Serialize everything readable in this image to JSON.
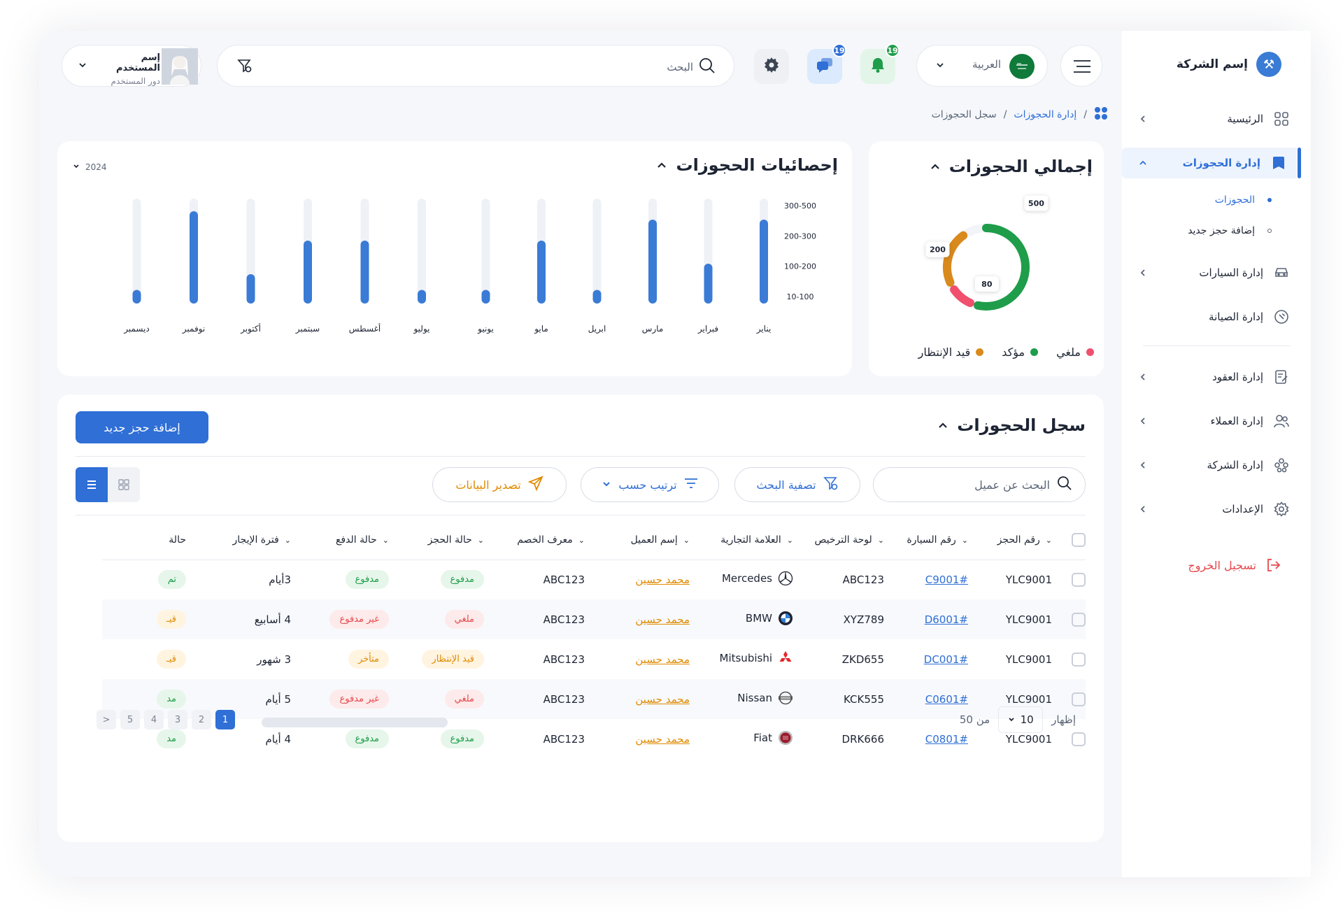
{
  "sidebar": {
    "company_name": "إسم الشركة",
    "items": [
      {
        "label": "الرئيسية"
      },
      {
        "label": "إدارة الحجوزات"
      },
      {
        "label": "إدارة السيارات"
      },
      {
        "label": "إدارة الصيانة"
      },
      {
        "label": "إدارة العقود"
      },
      {
        "label": "إدارة العملاء"
      },
      {
        "label": "إدارة الشركة"
      },
      {
        "label": "الإعدادات"
      }
    ],
    "sub_items": [
      {
        "label": "الحجوزات"
      },
      {
        "label": "إضافة حجز جديد"
      }
    ],
    "logout": "تسجيل الخروج"
  },
  "header": {
    "language": "العربية",
    "notifications_count": "19",
    "messages_count": "19",
    "search_placeholder": "البحث",
    "user_name": "إسم المستخدم",
    "user_role": "دور المستخدم"
  },
  "breadcrumb": {
    "parent": "إدارة الحجوزات",
    "separator": "/",
    "current": "سجل الحجوزات"
  },
  "summary": {
    "title": "إجمالي الحجوزات",
    "legend": [
      {
        "label": "ملغي",
        "color": "#f0506e"
      },
      {
        "label": "مؤكد",
        "color": "#1f9d4a"
      },
      {
        "label": "قيد الإنتظار",
        "color": "#d98a1c"
      }
    ]
  },
  "stats": {
    "title": "إحصائيات الحجوزات",
    "year": "2024"
  },
  "chart_data": [
    {
      "type": "pie",
      "categories": [
        "مؤكد",
        "قيد الإنتظار",
        "ملغي"
      ],
      "values": [
        500,
        200,
        80
      ],
      "data_labels": [
        "500",
        "200",
        "80"
      ],
      "colors": [
        "#1f9d4a",
        "#d98a1c",
        "#f0506e"
      ]
    },
    {
      "type": "bar",
      "categories": [
        "يناير",
        "فبراير",
        "مارس",
        "ابريل",
        "مايو",
        "يونيو",
        "يوليو",
        "أغسطس",
        "سبتمبر",
        "أكتوبر",
        "نوفمبر",
        "ديسمبر"
      ],
      "values": [
        400,
        190,
        400,
        65,
        300,
        65,
        65,
        300,
        300,
        140,
        440,
        65
      ],
      "ylim": [
        0,
        500
      ],
      "ytick_labels": [
        "10-100",
        "100-200",
        "200-300",
        "300-500"
      ],
      "color": "#3a7bd5"
    }
  ],
  "register": {
    "title": "سجل الحجوزات",
    "add_button": "إضافة حجز جديد",
    "search_placeholder": "البحث عن عميل",
    "filter_button": "تصفية البحث",
    "sort_button": "ترتيب حسب",
    "export_button": "تصدير البيانات",
    "columns": [
      "رقم الحجز",
      "رقم السيارة",
      "لوحة الترخيص",
      "العلامة التجارية",
      "إسم العميل",
      "معرف الخصم",
      "حالة الحجز",
      "حالة الدفع",
      "فترة الإيجار",
      "حالة"
    ],
    "rows": [
      {
        "id": "YLC9001",
        "car": "#C9001",
        "plate": "ABC123",
        "brand": "Mercedes",
        "client": "محمد حسين",
        "discount": "ABC123",
        "booking": "مدفوع",
        "booking_type": "paid",
        "payment": "مدفوع",
        "payment_type": "paid",
        "period": "3أيام",
        "status": "تم"
      },
      {
        "id": "YLC9001",
        "car": "#D6001",
        "plate": "XYZ789",
        "brand": "BMW",
        "client": "محمد حسين",
        "discount": "ABC123",
        "booking": "ملغي",
        "booking_type": "unpaid",
        "payment": "غير مدفوع",
        "payment_type": "unpaid",
        "period": "4 أسابيع",
        "status": "قيـ"
      },
      {
        "id": "YLC9001",
        "car": "#DC001",
        "plate": "ZKD655",
        "brand": "Mitsubishi",
        "client": "محمد حسين",
        "discount": "ABC123",
        "booking": "قيد الإنتظار",
        "booking_type": "wait",
        "payment": "متأخر",
        "payment_type": "wait",
        "period": "3 شهور",
        "status": "قيـ"
      },
      {
        "id": "YLC9001",
        "car": "#C0601",
        "plate": "KCK555",
        "brand": "Nissan",
        "client": "محمد حسين",
        "discount": "ABC123",
        "booking": "ملغي",
        "booking_type": "unpaid",
        "payment": "غير مدفوع",
        "payment_type": "unpaid",
        "period": "5 أيام",
        "status": "مد"
      },
      {
        "id": "YLC9001",
        "car": "#C0801",
        "plate": "DRK666",
        "brand": "Fiat",
        "client": "محمد حسين",
        "discount": "ABC123",
        "booking": "مدفوع",
        "booking_type": "paid",
        "payment": "مدفوع",
        "payment_type": "paid",
        "period": "4 أيام",
        "status": "مد"
      }
    ],
    "footer": {
      "show_label": "إظهار",
      "per_page": "10",
      "of_label": "من 50",
      "pages": [
        "1",
        "2",
        "3",
        "4",
        "5"
      ],
      "next": "<"
    }
  }
}
